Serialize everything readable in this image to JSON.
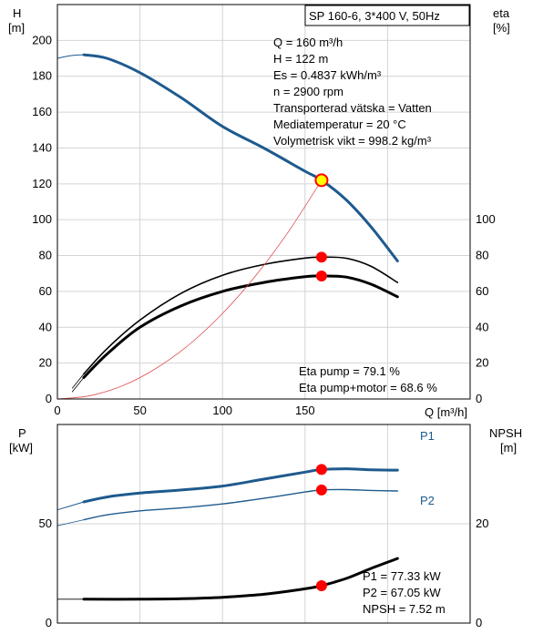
{
  "colors": {
    "curve_blue": "#1e5a8e",
    "point_red": "#ff0000",
    "duty_fill": "#ffff00",
    "system_curve": "#e05050",
    "grid": "#d4d4d4"
  },
  "top_title": "SP 160-6, 3*400 V, 50Hz",
  "top_info": [
    "Q = 160 m³/h",
    "H = 122 m",
    "Es = 0.4837 kWh/m³",
    "n = 2900 rpm",
    "Transporterad vätska = Vatten",
    "Mediatemperatur = 20 °C",
    "Volymetrisk vikt = 998.2 kg/m³"
  ],
  "eta_info": [
    "Eta pump = 79.1 %",
    "Eta pump+motor = 68.6 %"
  ],
  "bottom_info": [
    "P1 = 77.33 kW",
    "P2 = 67.05 kW",
    "NPSH = 7.52 m"
  ],
  "chart_data": [
    {
      "id": "head-efficiency",
      "type": "line",
      "xlabel": "Q [m³/h]",
      "ylabel_left": [
        "H",
        "[m]"
      ],
      "ylabel_right": [
        "eta",
        "[%]"
      ],
      "xlim": [
        0,
        250
      ],
      "ylim_left": [
        0,
        220
      ],
      "ylim_right": [
        0,
        220
      ],
      "x_ticks": [
        0,
        50,
        100,
        150
      ],
      "y_ticks_left": [
        0,
        20,
        40,
        60,
        80,
        100,
        120,
        140,
        160,
        180,
        200
      ],
      "y_ticks_right": [
        0,
        20,
        40,
        60,
        80,
        100
      ],
      "grid": true,
      "series": [
        {
          "key": "head",
          "axis": "left",
          "x": [
            16,
            30,
            50,
            75,
            100,
            125,
            150,
            160,
            175,
            190,
            206
          ],
          "y": [
            192,
            190,
            182,
            168,
            152,
            140,
            127,
            122,
            111,
            96,
            77
          ]
        },
        {
          "key": "head_ext",
          "axis": "left",
          "x": [
            0,
            8,
            16
          ],
          "y": [
            190,
            191.5,
            192
          ]
        },
        {
          "key": "eta_pump",
          "axis": "right",
          "x": [
            16,
            30,
            50,
            75,
            100,
            125,
            150,
            160,
            175,
            190,
            206
          ],
          "y": [
            14,
            28,
            44,
            59,
            69,
            75,
            78.6,
            79.1,
            78.5,
            74,
            65
          ]
        },
        {
          "key": "eta_pump_ext",
          "axis": "right",
          "x": [
            9,
            16
          ],
          "y": [
            6,
            14
          ]
        },
        {
          "key": "eta_total",
          "axis": "right",
          "x": [
            16,
            30,
            50,
            75,
            100,
            125,
            150,
            160,
            175,
            190,
            206
          ],
          "y": [
            12,
            25,
            40,
            52,
            60,
            65,
            68.2,
            68.6,
            68,
            64,
            57
          ]
        },
        {
          "key": "eta_total_ext",
          "axis": "right",
          "x": [
            9,
            16
          ],
          "y": [
            4,
            12
          ]
        },
        {
          "key": "system",
          "axis": "left",
          "x": [
            0,
            20,
            40,
            60,
            80,
            100,
            120,
            140,
            160
          ],
          "y": [
            0,
            1.9,
            7.6,
            17.2,
            30.5,
            47.7,
            68.6,
            93.4,
            122
          ]
        }
      ],
      "duty_points": [
        {
          "x": 160,
          "y": 122,
          "style": "duty"
        },
        {
          "x": 160,
          "y": 79.1,
          "style": "red"
        },
        {
          "x": 160,
          "y": 68.6,
          "style": "red"
        }
      ]
    },
    {
      "id": "power-npsh",
      "type": "line",
      "ylabel_left": [
        "P",
        "[kW]"
      ],
      "ylabel_right": [
        "NPSH",
        "[m]"
      ],
      "xlim": [
        0,
        250
      ],
      "ylim_left": [
        0,
        100
      ],
      "ylim_right": [
        0,
        40
      ],
      "y_ticks_left": [
        0,
        50
      ],
      "y_ticks_right": [
        0,
        20
      ],
      "grid": true,
      "series": [
        {
          "key": "p1",
          "name": "P1",
          "axis": "left",
          "x": [
            16,
            30,
            50,
            75,
            100,
            125,
            150,
            160,
            175,
            190,
            206
          ],
          "y": [
            61,
            63.5,
            65.5,
            67,
            69,
            72.5,
            76,
            77.33,
            77.7,
            77.2,
            77
          ]
        },
        {
          "key": "p1_ext",
          "axis": "left",
          "x": [
            0,
            16
          ],
          "y": [
            57,
            61
          ]
        },
        {
          "key": "p2",
          "name": "P2",
          "axis": "left",
          "x": [
            16,
            30,
            50,
            75,
            100,
            125,
            150,
            160,
            175,
            190,
            206
          ],
          "y": [
            52,
            54.5,
            56.5,
            58,
            60,
            62.8,
            66,
            67.05,
            67.2,
            66.8,
            66.5
          ]
        },
        {
          "key": "p2_ext",
          "axis": "left",
          "x": [
            0,
            16
          ],
          "y": [
            49,
            52
          ]
        },
        {
          "key": "npsh",
          "axis": "right",
          "x": [
            16,
            50,
            75,
            100,
            125,
            150,
            160,
            175,
            190,
            206
          ],
          "y": [
            4.8,
            4.8,
            4.9,
            5.2,
            5.8,
            6.9,
            7.52,
            9.0,
            11.0,
            13.0
          ]
        },
        {
          "key": "npsh_ext",
          "axis": "right",
          "x": [
            0,
            16
          ],
          "y": [
            4.8,
            4.8
          ]
        }
      ],
      "duty_points": [
        {
          "x": 160,
          "y": 77.33,
          "axis": "left",
          "style": "red"
        },
        {
          "x": 160,
          "y": 67.05,
          "axis": "left",
          "style": "red"
        },
        {
          "x": 160,
          "y": 7.52,
          "axis": "right",
          "style": "red"
        }
      ]
    }
  ]
}
